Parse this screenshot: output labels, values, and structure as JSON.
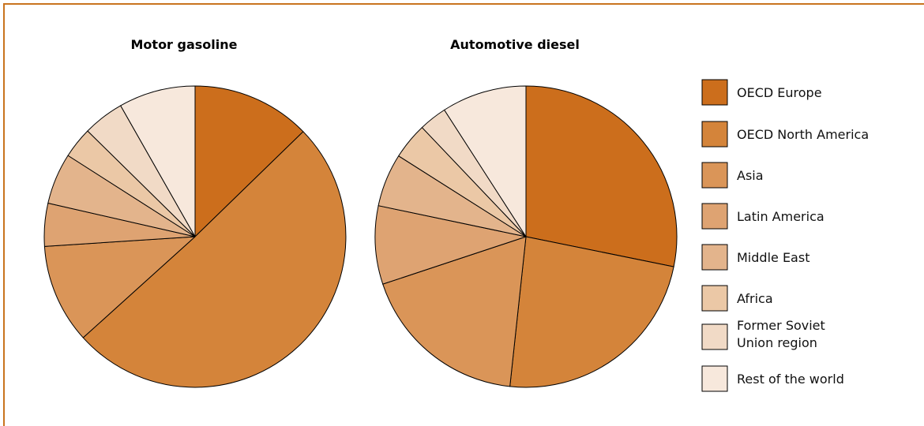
{
  "colors": {
    "frame": "#c9741f",
    "slice_stroke": "#000000",
    "palette": [
      "#cc6e1c",
      "#d4843a",
      "#da9558",
      "#dea372",
      "#e3b48c",
      "#ebc8a6",
      "#f1dac6",
      "#f7e8dc"
    ]
  },
  "legend": {
    "items": [
      {
        "label": "OECD Europe"
      },
      {
        "label": "OECD North America"
      },
      {
        "label": "Asia"
      },
      {
        "label": "Latin America"
      },
      {
        "label": "Middle East"
      },
      {
        "label": "Africa"
      },
      {
        "label": "Former Soviet",
        "label2": "Union region"
      },
      {
        "label": "Rest of the world"
      }
    ]
  },
  "chart_data": [
    {
      "type": "pie",
      "title": "Motor gasoline",
      "categories": [
        "OECD Europe",
        "OECD North America",
        "Asia",
        "Latin America",
        "Middle East",
        "Africa",
        "Former Soviet Union region",
        "Rest of the world"
      ],
      "values": [
        13.0,
        51.7,
        10.9,
        4.7,
        5.6,
        3.4,
        4.5,
        8.4
      ]
    },
    {
      "type": "pie",
      "title": "Automotive diesel",
      "categories": [
        "OECD Europe",
        "OECD North America",
        "Asia",
        "Latin America",
        "Middle East",
        "Africa",
        "Former Soviet Union region",
        "Rest of the world"
      ],
      "values": [
        28.2,
        23.5,
        18.2,
        8.4,
        5.7,
        3.9,
        3.0,
        9.1
      ]
    }
  ]
}
